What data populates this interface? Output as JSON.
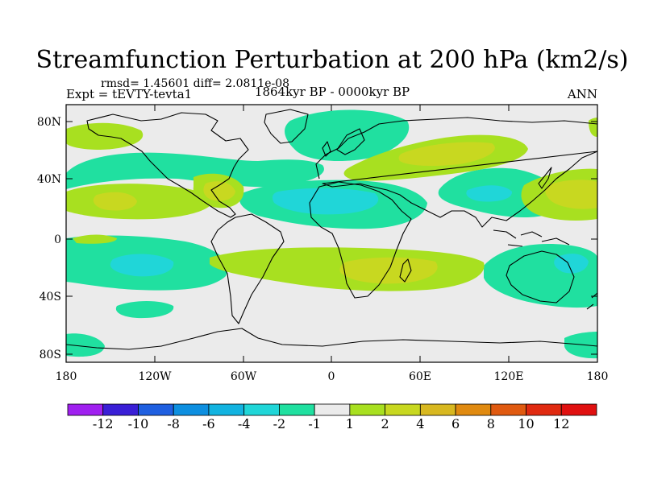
{
  "title": "Streamfunction Perturbation at 200 hPa (km2/s)",
  "stats_line": "rmsd= 1.45601 diff= 2.0811e-08",
  "experiment": "Expt = tEVTY-tevta1",
  "period": "1864kyr BP - 0000kyr BP",
  "season": "ANN",
  "lat_ticks": [
    "80N",
    "40N",
    "0",
    "40S",
    "80S"
  ],
  "lon_ticks": [
    "180",
    "120W",
    "60W",
    "0",
    "60E",
    "120E",
    "180"
  ],
  "colorbar": {
    "labels": [
      "-12",
      "-10",
      "-8",
      "-6",
      "-4",
      "-2",
      "-1",
      "1",
      "2",
      "4",
      "6",
      "8",
      "10",
      "12"
    ],
    "colors": [
      "#a020f0",
      "#3a1fd6",
      "#1f5fe0",
      "#0d8fe0",
      "#12b3e0",
      "#20d6d8",
      "#20e0a0",
      "#ebebeb",
      "#a8e020",
      "#c8d820",
      "#d8b820",
      "#e08a10",
      "#e05a10",
      "#e02a10",
      "#e01010"
    ]
  },
  "field_colors": {
    "neg1": "#20e0a0",
    "neg2": "#20d6d8",
    "pos1": "#a8e020",
    "pos2": "#c8d820",
    "neutral": "#ebebeb"
  }
}
